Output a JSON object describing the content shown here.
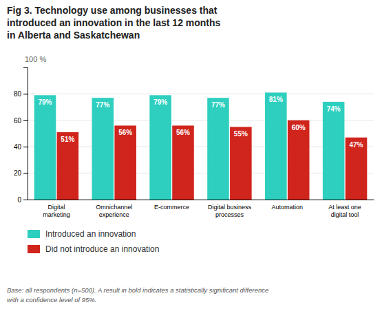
{
  "chart_data": {
    "type": "bar",
    "title": "Fig 3. Technology use among businesses that\nintroduced an innovation in the last 12 months\nin Alberta and Saskatchewan",
    "ylabel": "100 %",
    "footnote": "Base: all respondents (n=500). A result in bold indicates a statistically significant difference\nwith a confidence level of 95%.",
    "categories": [
      "Digital\nmarketing",
      "Omnichannel\nexperience",
      "E-commerce",
      "Digital business\nprocesses",
      "Automation",
      "At least one\ndigital tool"
    ],
    "series": [
      {
        "name": "Introduced an innovation",
        "color": "#2ecfbf",
        "values": [
          79,
          77,
          79,
          77,
          81,
          74
        ],
        "value_labels": [
          "79%",
          "77%",
          "79%",
          "77%",
          "81%",
          "74%"
        ]
      },
      {
        "name": "Did not introduce an innovation",
        "color": "#d0251d",
        "values": [
          51,
          56,
          56,
          55,
          60,
          47
        ],
        "value_labels": [
          "51%",
          "56%",
          "56%",
          "55%",
          "60%",
          "47%"
        ]
      }
    ],
    "ylim": [
      0,
      100
    ],
    "yticks": [
      0,
      20,
      40,
      60,
      80
    ],
    "grid": true,
    "legend": "bottom",
    "data_labels": true
  }
}
